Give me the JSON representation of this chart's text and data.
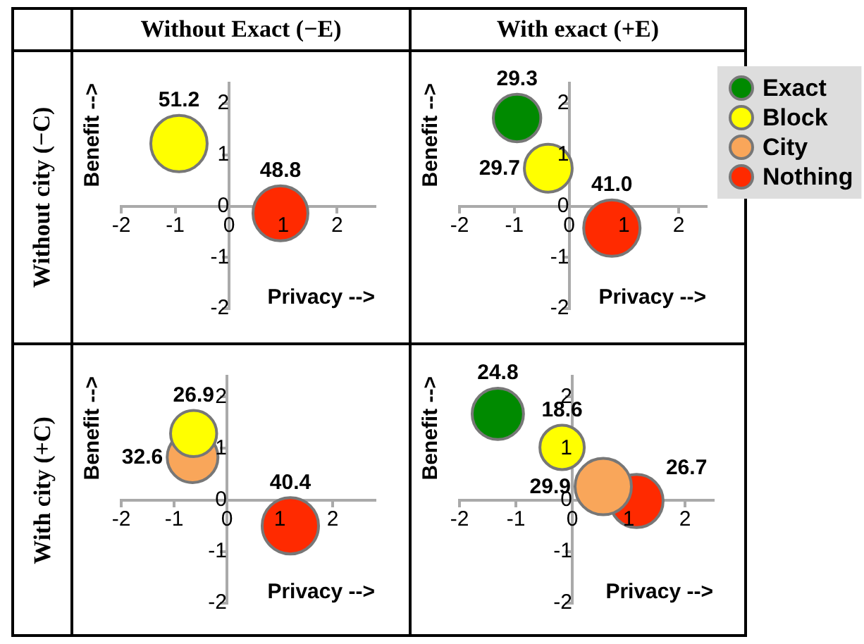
{
  "chart_data": [
    {
      "type": "bubble",
      "title": "Without Exact (−E)",
      "subtitle": "Without city (−C)",
      "xlabel": "Privacy -->",
      "ylabel": "Benefit -->",
      "xlim": [
        -2,
        2.7
      ],
      "ylim": [
        -2,
        2.4
      ],
      "xticks": [
        -2,
        -1,
        0,
        1,
        2
      ],
      "yticks": [
        -2,
        -1,
        0,
        1,
        2
      ],
      "legend": false,
      "series": [
        {
          "color": "#ffff00",
          "x": [
            -0.93
          ],
          "values": [
            1.22
          ],
          "sizes": [
            1
          ]
        },
        {
          "color": "#ff2a00",
          "x": [
            0.95
          ],
          "values": [
            -0.14
          ],
          "sizes": [
            0.95
          ]
        }
      ],
      "annotations": [
        {
          "text": "51.2",
          "x": -0.93,
          "y": 1.22
        },
        {
          "text": "48.8",
          "x": 0.95,
          "y": -0.14
        }
      ]
    },
    {
      "type": "bubble",
      "title": "With exact (+E)",
      "xlabel": "Privacy -->",
      "ylabel": "Benefit -->",
      "xlim": [
        -2,
        2.5
      ],
      "ylim": [
        -2,
        2.4
      ],
      "xticks": [
        -2,
        -1,
        0,
        1,
        2
      ],
      "yticks": [
        -2,
        -1,
        0,
        1,
        2
      ],
      "legend": "right",
      "series": [
        {
          "name": "Exact",
          "color": "#008a00",
          "x": [
            -0.95
          ],
          "values": [
            1.72
          ],
          "sizes": [
            0.71
          ]
        },
        {
          "name": "Block",
          "color": "#ffff00",
          "x": [
            -0.38
          ],
          "values": [
            0.74
          ],
          "sizes": [
            0.72
          ]
        },
        {
          "name": "City",
          "color": "#f9a65a"
        },
        {
          "name": "Nothing",
          "color": "#ff2a00",
          "x": [
            0.78
          ],
          "values": [
            -0.43
          ],
          "sizes": [
            1
          ]
        }
      ],
      "annotations": [
        {
          "text": "29.3",
          "x": -0.95,
          "y": 1.72
        },
        {
          "text": "29.7",
          "x": -0.38,
          "y": 0.74
        },
        {
          "text": "41.0",
          "x": 0.78,
          "y": -0.43
        }
      ]
    },
    {
      "type": "bubble",
      "subtitle": "With city (+C)",
      "xlabel": "Privacy -->",
      "ylabel": "Benefit -->",
      "xlim": [
        -2,
        2.8
      ],
      "ylim": [
        -2,
        2.4
      ],
      "xticks": [
        -2,
        -1,
        0,
        1,
        2
      ],
      "yticks": [
        -2,
        -1,
        0,
        1,
        2
      ],
      "legend": false,
      "series": [
        {
          "color": "#ffff00",
          "x": [
            -0.63
          ],
          "values": [
            1.29
          ],
          "sizes": [
            0.67
          ]
        },
        {
          "color": "#f9a65a",
          "x": [
            -0.65
          ],
          "values": [
            0.83
          ],
          "sizes": [
            0.81
          ]
        },
        {
          "color": "#ff2a00",
          "x": [
            1.2
          ],
          "values": [
            -0.5
          ],
          "sizes": [
            1
          ]
        }
      ],
      "annotations": [
        {
          "text": "26.9",
          "x": -0.63,
          "y": 1.29
        },
        {
          "text": "32.6",
          "x": -0.65,
          "y": 0.83
        },
        {
          "text": "40.4",
          "x": 1.2,
          "y": -0.5
        }
      ]
    },
    {
      "type": "bubble",
      "xlabel": "Privacy -->",
      "ylabel": "Benefit -->",
      "xlim": [
        -2,
        2.5
      ],
      "ylim": [
        -2,
        2.4
      ],
      "xticks": [
        -2,
        -1,
        0,
        1,
        2
      ],
      "yticks": [
        -2,
        -1,
        0,
        1,
        2
      ],
      "legend": false,
      "series": [
        {
          "color": "#008a00",
          "x": [
            -1.32
          ],
          "values": [
            1.67
          ],
          "sizes": [
            0.83
          ]
        },
        {
          "color": "#ffff00",
          "x": [
            -0.18
          ],
          "values": [
            1.02
          ],
          "sizes": [
            0.62
          ]
        },
        {
          "color": "#f9a65a",
          "x": [
            0.55
          ],
          "values": [
            0.26
          ],
          "sizes": [
            1
          ]
        },
        {
          "color": "#ff2a00",
          "x": [
            1.14
          ],
          "values": [
            -0.02
          ],
          "sizes": [
            0.89
          ]
        }
      ],
      "annotations": [
        {
          "text": "24.8",
          "x": -1.32,
          "y": 1.67
        },
        {
          "text": "18.6",
          "x": -0.18,
          "y": 1.02
        },
        {
          "text": "29.9",
          "x": 0.55,
          "y": 0.26
        },
        {
          "text": "26.7",
          "x": 1.14,
          "y": -0.02
        }
      ]
    }
  ]
}
